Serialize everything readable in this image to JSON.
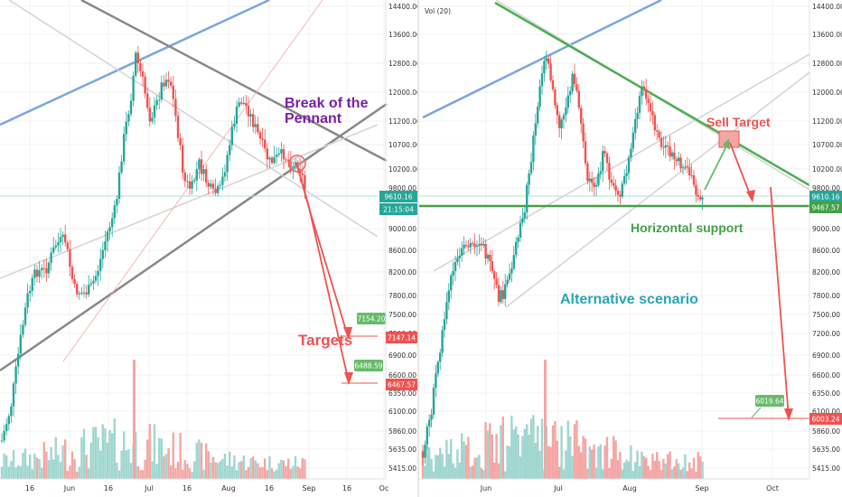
{
  "colors": {
    "up": "#26a69a",
    "down": "#ef5350",
    "up_vol": "#9fd6cf",
    "down_vol": "#f4a6a4",
    "green_line": "#4caf50",
    "blue_line": "#7aa6e0",
    "gray_line": "#888888",
    "light_line": "#d3d3d3",
    "arrow": "#ef5350",
    "arrow_green": "#66bb6a",
    "purple": "#7b1fa2",
    "cyan": "#26a6b8",
    "hsupport": "#43a047",
    "price_line": "#b2dfdb",
    "price_badge": "#26a69a",
    "timer_badge": "#26a69a"
  },
  "left_panel": {
    "chart_data": {
      "type": "candlestick",
      "title": "",
      "y_ticks": [
        "14400.00",
        "13600.00",
        "12800.00",
        "12000.00",
        "11200.00",
        "10700.00",
        "10200.00",
        "9800.00",
        "9000.00",
        "8600.00",
        "8200.00",
        "7800.00",
        "7500.00",
        "7200.00",
        "6900.00",
        "6600.00",
        "6350.00",
        "6100.00",
        "5860.00",
        "5635.00",
        "5415.00"
      ],
      "x_ticks": [
        "16",
        "Jun",
        "16",
        "Jul",
        "16",
        "Aug",
        "16",
        "Sep",
        "16",
        "Oc"
      ],
      "price_label": "9610.16",
      "timer_label": "21:15:04",
      "targets": [
        {
          "label": "7154.20",
          "kind": "green"
        },
        {
          "label": "7147.14",
          "kind": "red"
        },
        {
          "label": "6488.59",
          "kind": "green"
        },
        {
          "label": "6467.57",
          "kind": "red"
        }
      ]
    },
    "annotations": {
      "pennant": "Break of the\nPennant",
      "targets": "Targets"
    }
  },
  "right_panel": {
    "vol_label": "Vol (20)",
    "chart_data": {
      "type": "candlestick",
      "title": "",
      "y_ticks": [
        "14400.00",
        "13600.00",
        "12800.00",
        "12000.00",
        "11200.00",
        "10700.00",
        "10200.00",
        "9800.00",
        "9000.00",
        "8600.00",
        "8200.00",
        "7800.00",
        "7500.00",
        "7200.00",
        "6900.00",
        "6600.00",
        "6350.00",
        "6100.00",
        "5860.00",
        "5635.00",
        "5415.00"
      ],
      "x_ticks": [
        "Jun",
        "Jul",
        "Aug",
        "Sep",
        "Oct"
      ],
      "price_label": "9610.16",
      "support_label": "9467.57",
      "targets": [
        {
          "label": "6019.64",
          "kind": "green"
        },
        {
          "label": "6003.24",
          "kind": "red"
        }
      ]
    },
    "annotations": {
      "sell_target": "Sell Target",
      "horizontal_support": "Horizontal support",
      "alternative": "Alternative scenario"
    }
  }
}
